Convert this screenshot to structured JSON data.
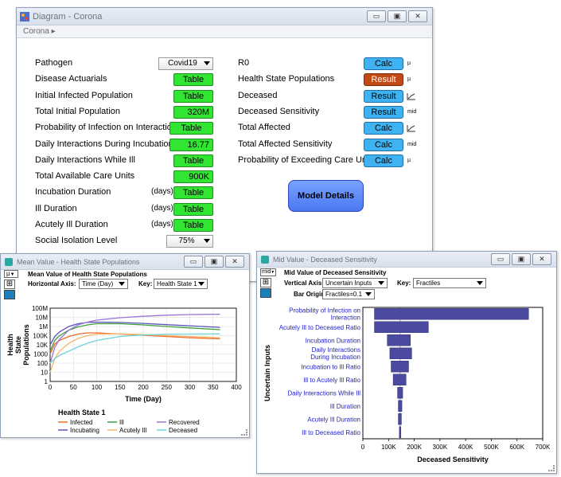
{
  "main": {
    "title": "Diagram - Corona",
    "breadcrumb": "Corona",
    "left_rows": [
      {
        "label": "Pathogen"
      },
      {
        "label": "Disease Actuarials"
      },
      {
        "label": "Initial Infected Population"
      },
      {
        "label": "Total Initial Population"
      },
      {
        "label": "Probability of Infection on Interaction"
      },
      {
        "label": "Daily Interactions During Incubation"
      },
      {
        "label": "Daily Interactions While Ill"
      },
      {
        "label": "Total Available Care Units"
      },
      {
        "label": "Incubation Duration",
        "unit": "(days)"
      },
      {
        "label": "Ill Duration",
        "unit": "(days)"
      },
      {
        "label": "Acutely Ill Duration",
        "unit": "(days)"
      },
      {
        "label": "Social Isolation Level"
      }
    ],
    "left_values": {
      "pathogen": "Covid19",
      "disease_actuarials": "Table",
      "initial_infected": "Table",
      "total_initial_population": "320M",
      "prob_infection": "Table",
      "daily_interactions_incubation": "16.77",
      "daily_interactions_ill": "Table",
      "total_care_units": "900K",
      "incubation_duration": "Table",
      "ill_duration": "Table",
      "acutely_ill_duration": "Table",
      "social_isolation": "75%"
    },
    "right_rows": [
      {
        "label": "R0",
        "button": "Calc",
        "kind": "calc",
        "icon": "µ"
      },
      {
        "label": "Health State Populations",
        "button": "Result",
        "kind": "result",
        "icon": "µ"
      },
      {
        "label": "Deceased",
        "button": "Result",
        "kind": "calc",
        "icon": "chart"
      },
      {
        "label": "Deceased Sensitivity",
        "button": "Result",
        "kind": "calc",
        "icon": "mid"
      },
      {
        "label": "Total Affected",
        "button": "Calc",
        "kind": "calc",
        "icon": "chart"
      },
      {
        "label": "Total Affected Sensitivity",
        "button": "Calc",
        "kind": "calc",
        "icon": "mid"
      },
      {
        "label": "Probability of Exceeding Care Units",
        "button": "Calc",
        "kind": "calc",
        "icon": "µ"
      }
    ],
    "model_details": "Model Details"
  },
  "mean_window": {
    "title": "Mean Value - Health State Populations",
    "mode": "µ",
    "heading": "Mean Value of Health State Populations",
    "horizontal_axis_label": "Horizontal Axis:",
    "horizontal_axis_value": "Time (Day)",
    "key_label": "Key:",
    "key_value": "Health State 1"
  },
  "sens_window": {
    "title": "Mid Value - Deceased Sensitivity",
    "mode": "mid",
    "heading": "Mid Value of Deceased Sensitivity",
    "vertical_axis_label": "Vertical Axis:",
    "vertical_axis_value": "Uncertain Inputs",
    "key_label": "Key:",
    "key_value": "Fractiles",
    "bar_origin_label": "Bar Origin:",
    "bar_origin_value": "Fractiles=0.1"
  },
  "chart_data": [
    {
      "type": "line",
      "xlabel": "Time (Day)",
      "ylabel": "Health State Populations",
      "xlim": [
        0,
        400
      ],
      "xticks": [
        "0",
        "50",
        "100",
        "150",
        "200",
        "250",
        "300",
        "350",
        "400"
      ],
      "ylim": [
        1,
        100000000
      ],
      "yscale": "log",
      "yticks": [
        "1",
        "10",
        "100",
        "1000",
        "10K",
        "100K",
        "1M",
        "10M",
        "100M"
      ],
      "grid": true,
      "legend_title": "Health State 1",
      "legend_position": "bottom",
      "series": [
        {
          "name": "Infected",
          "color": "#f06a2a",
          "x": [
            0,
            10,
            20,
            40,
            60,
            80,
            100,
            150,
            200,
            250,
            300,
            365
          ],
          "y": [
            1000,
            12000,
            30000,
            80000,
            150000,
            200000,
            200000,
            150000,
            110000,
            80000,
            60000,
            45000
          ]
        },
        {
          "name": "Incubating",
          "color": "#5a55b8",
          "x": [
            0,
            10,
            20,
            40,
            60,
            80,
            100,
            150,
            200,
            250,
            300,
            365
          ],
          "y": [
            10000,
            80000,
            250000,
            1000000,
            2000000,
            2800000,
            3000000,
            2800000,
            2200000,
            1600000,
            1200000,
            800000
          ]
        },
        {
          "name": "Ill",
          "color": "#3f9f3f",
          "x": [
            0,
            10,
            20,
            40,
            60,
            80,
            100,
            150,
            200,
            250,
            300,
            365
          ],
          "y": [
            2000,
            30000,
            100000,
            400000,
            900000,
            1500000,
            2000000,
            2000000,
            1500000,
            1000000,
            700000,
            450000
          ]
        },
        {
          "name": "Acutely Ill",
          "color": "#f4b56a",
          "x": [
            0,
            10,
            20,
            40,
            60,
            80,
            100,
            150,
            200,
            250,
            300,
            365
          ],
          "y": [
            10,
            300,
            2000,
            15000,
            50000,
            100000,
            150000,
            160000,
            130000,
            100000,
            80000,
            60000
          ]
        },
        {
          "name": "Recovered",
          "color": "#9a75d6",
          "x": [
            0,
            10,
            20,
            40,
            60,
            80,
            100,
            150,
            200,
            250,
            300,
            365
          ],
          "y": [
            100,
            5000,
            40000,
            400000,
            1500000,
            3000000,
            5000000,
            9000000,
            13000000,
            17000000,
            20000000,
            22000000
          ]
        },
        {
          "name": "Deceased",
          "color": "#6ed4d8",
          "x": [
            0,
            10,
            20,
            40,
            60,
            80,
            100,
            150,
            200,
            250,
            300,
            365
          ],
          "y": [
            100,
            300,
            700,
            2000,
            6000,
            15000,
            30000,
            80000,
            120000,
            140000,
            150000,
            155000
          ]
        }
      ]
    },
    {
      "type": "bar",
      "orientation": "horizontal",
      "ylabel": "Uncertain Inputs",
      "xlabel": "Deceased Sensitivity",
      "xlim": [
        0,
        700000
      ],
      "xticks": [
        "0",
        "100K",
        "200K",
        "300K",
        "400K",
        "500K",
        "600K",
        "700K"
      ],
      "origin": 145000,
      "bar_color": "#4a4aa0",
      "categories": [
        "Probability of Infection on Interaction",
        "Acutely Ill to Deceased Ratio",
        "Incubation Duration",
        "Daily Interactions During Incubation",
        "Incubation to Ill Ratio",
        "Ill to Acutely Ill Ratio",
        "Daily Interactions While Ill",
        "Ill Duration",
        "Acutely Ill Duration",
        "Ill to Deceased Ratio"
      ],
      "low": [
        45000,
        45000,
        95000,
        105000,
        110000,
        118000,
        135000,
        138000,
        138000,
        142000
      ],
      "high": [
        645000,
        255000,
        185000,
        190000,
        178000,
        168000,
        155000,
        152000,
        150000,
        148000
      ]
    }
  ]
}
